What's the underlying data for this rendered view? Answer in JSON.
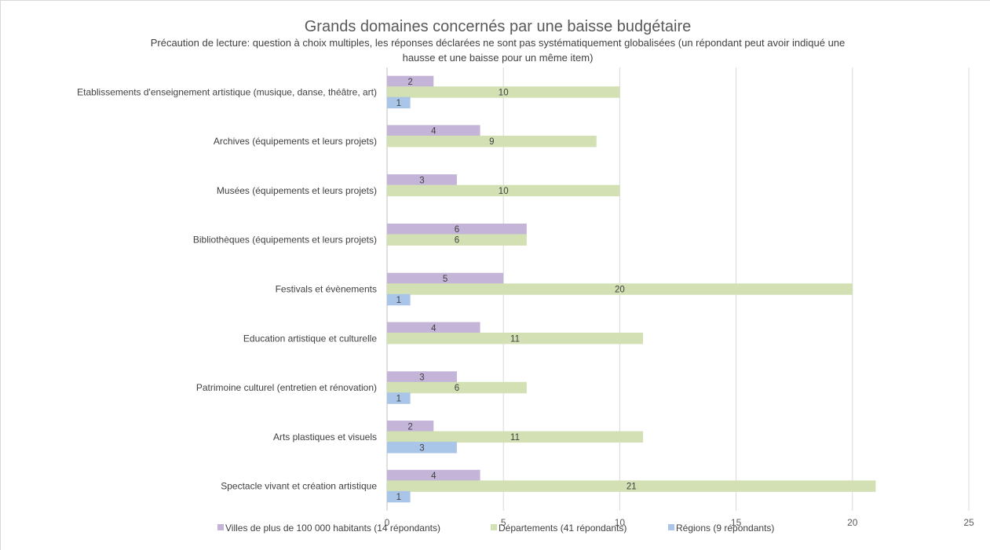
{
  "chart_data": {
    "type": "bar",
    "orientation": "horizontal",
    "title": "Grands domaines concernés par une baisse budgétaire",
    "subtitle_lines": [
      "Précaution de lecture: question à choix multiples, les réponses déclarées ne sont pas systématiquement globalisées (un répondant peut avoir indiqué une",
      "hausse et une baisse pour un même item)"
    ],
    "categories": [
      "Etablissements d'enseignement artistique (musique, danse, théâtre, art)",
      "Archives (équipements et leurs projets)",
      "Musées (équipements et leurs projets)",
      "Bibliothèques (équipements et leurs projets)",
      "Festivals et évènements",
      "Education artistique et culturelle",
      "Patrimoine culturel (entretien et rénovation)",
      "Arts plastiques et visuels",
      "Spectacle vivant et création artistique"
    ],
    "series": [
      {
        "name": "Villes de plus de 100 000 habitants (14 répondants)",
        "color": "#c3b4d8",
        "values": [
          2,
          4,
          3,
          6,
          5,
          4,
          3,
          2,
          4
        ]
      },
      {
        "name": "Départements (41 répondants)",
        "color": "#d2e0b3",
        "values": [
          10,
          9,
          10,
          6,
          20,
          11,
          6,
          11,
          21
        ]
      },
      {
        "name": "Régions (9 répondants)",
        "color": "#a9c5e8",
        "values": [
          1,
          null,
          null,
          null,
          1,
          null,
          1,
          3,
          1
        ]
      }
    ],
    "xlim": [
      0,
      25
    ],
    "xticks": [
      0,
      5,
      10,
      15,
      20,
      25
    ],
    "xlabel": "",
    "ylabel": "",
    "grid": "vertical",
    "legend": "bottom"
  }
}
